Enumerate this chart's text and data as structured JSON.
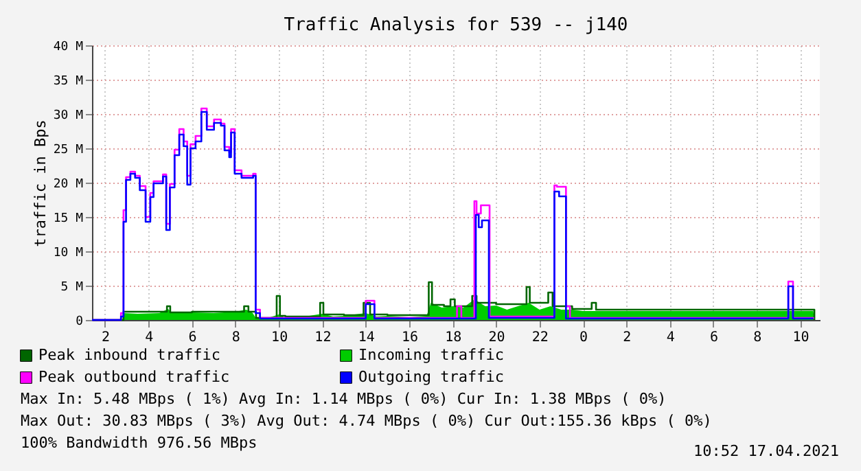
{
  "chart_data": {
    "type": "step",
    "title": "Traffic Analysis for 539 -- j140",
    "ylabel": "traffic in Bps",
    "xlim": [
      "2021-04-16T01:24",
      "2021-04-17T10:54"
    ],
    "ylim": [
      0,
      40
    ],
    "xticks": [
      {
        "value": "2021-04-16T02:00",
        "label": "2"
      },
      {
        "value": "2021-04-16T04:00",
        "label": "4"
      },
      {
        "value": "2021-04-16T06:00",
        "label": "6"
      },
      {
        "value": "2021-04-16T08:00",
        "label": "8"
      },
      {
        "value": "2021-04-16T10:00",
        "label": "10"
      },
      {
        "value": "2021-04-16T12:00",
        "label": "12"
      },
      {
        "value": "2021-04-16T14:00",
        "label": "14"
      },
      {
        "value": "2021-04-16T16:00",
        "label": "16"
      },
      {
        "value": "2021-04-16T18:00",
        "label": "18"
      },
      {
        "value": "2021-04-16T20:00",
        "label": "20"
      },
      {
        "value": "2021-04-16T22:00",
        "label": "22"
      },
      {
        "value": "2021-04-17T00:00",
        "label": "0"
      },
      {
        "value": "2021-04-17T02:00",
        "label": "2"
      },
      {
        "value": "2021-04-17T04:00",
        "label": "4"
      },
      {
        "value": "2021-04-17T06:00",
        "label": "6"
      },
      {
        "value": "2021-04-17T08:00",
        "label": "8"
      },
      {
        "value": "2021-04-17T10:00",
        "label": "10"
      }
    ],
    "yticks": [
      0,
      {
        "value": 5,
        "label": "5 M"
      },
      {
        "value": 10,
        "label": "10 M"
      },
      {
        "value": 15,
        "label": "15 M"
      },
      {
        "value": 20,
        "label": "20 M"
      },
      {
        "value": 25,
        "label": "25 M"
      },
      {
        "value": 30,
        "label": "30 M"
      },
      {
        "value": 35,
        "label": "35 M"
      },
      {
        "value": 40,
        "label": "40 M"
      }
    ],
    "grid": true,
    "legend": "bottom",
    "series": [
      {
        "name": "Incoming traffic",
        "type": "area",
        "color": "#00cc00",
        "x": [
          "2021-04-16T01:24",
          "2021-04-16T02:48",
          "2021-04-16T02:51",
          "2021-04-16T03:30",
          "2021-04-16T04:30",
          "2021-04-16T04:54",
          "2021-04-16T05:06",
          "2021-04-16T06:00",
          "2021-04-16T07:00",
          "2021-04-16T08:00",
          "2021-04-16T08:30",
          "2021-04-16T08:48",
          "2021-04-16T08:57",
          "2021-04-16T09:30",
          "2021-04-16T10:00",
          "2021-04-16T10:18",
          "2021-04-16T11:00",
          "2021-04-16T12:00",
          "2021-04-16T12:30",
          "2021-04-16T13:00",
          "2021-04-16T14:00",
          "2021-04-16T14:30",
          "2021-04-16T15:00",
          "2021-04-16T16:00",
          "2021-04-16T16:48",
          "2021-04-16T17:00",
          "2021-04-16T17:30",
          "2021-04-16T18:00",
          "2021-04-16T18:30",
          "2021-04-16T19:00",
          "2021-04-16T19:30",
          "2021-04-16T20:00",
          "2021-04-16T20:30",
          "2021-04-16T21:00",
          "2021-04-16T21:30",
          "2021-04-16T22:00",
          "2021-04-16T22:30",
          "2021-04-16T23:00",
          "2021-04-16T23:30",
          "2021-04-17T00:00",
          "2021-04-17T01:00",
          "2021-04-17T04:00",
          "2021-04-17T07:00",
          "2021-04-17T09:00",
          "2021-04-17T10:00",
          "2021-04-17T10:36",
          "2021-04-17T10:39"
        ],
        "values": [
          0,
          0,
          1.0,
          0.9,
          1.0,
          1.6,
          1.0,
          1.1,
          1.0,
          1.2,
          1.5,
          1.0,
          0.2,
          0.3,
          0.8,
          0.3,
          0.4,
          0.9,
          0.5,
          0.6,
          1.0,
          0.5,
          0.6,
          0.4,
          0.6,
          2.5,
          1.8,
          2.0,
          1.8,
          3.0,
          2.0,
          2.1,
          1.5,
          2.0,
          2.5,
          1.5,
          2.0,
          1.5,
          1.5,
          1.3,
          1.3,
          1.3,
          1.3,
          1.3,
          1.3,
          1.3,
          0
        ]
      },
      {
        "name": "Peak inbound traffic",
        "color": "#006600",
        "x": [
          "2021-04-16T01:24",
          "2021-04-16T02:48",
          "2021-04-16T02:51",
          "2021-04-16T04:51",
          "2021-04-16T05:00",
          "2021-04-16T06:00",
          "2021-04-16T08:24",
          "2021-04-16T08:36",
          "2021-04-16T08:57",
          "2021-04-16T09:54",
          "2021-04-16T10:03",
          "2021-04-16T10:18",
          "2021-04-16T11:54",
          "2021-04-16T12:03",
          "2021-04-16T13:00",
          "2021-04-16T13:54",
          "2021-04-16T14:12",
          "2021-04-16T15:00",
          "2021-04-16T16:54",
          "2021-04-16T17:03",
          "2021-04-16T17:36",
          "2021-04-16T17:54",
          "2021-04-16T18:06",
          "2021-04-16T18:54",
          "2021-04-16T19:06",
          "2021-04-16T20:00",
          "2021-04-16T21:24",
          "2021-04-16T21:33",
          "2021-04-16T22:24",
          "2021-04-16T22:36",
          "2021-04-16T23:30",
          "2021-04-17T00:24",
          "2021-04-17T00:36",
          "2021-04-17T04:00",
          "2021-04-17T10:36",
          "2021-04-17T10:39"
        ],
        "values": [
          0,
          0,
          1.2,
          2.0,
          1.1,
          1.2,
          2.0,
          1.2,
          0.3,
          3.5,
          0.6,
          0.5,
          2.5,
          0.8,
          0.7,
          2.5,
          0.8,
          0.7,
          5.5,
          2.2,
          2.0,
          3.0,
          2.0,
          3.5,
          2.5,
          2.3,
          4.8,
          2.5,
          4.0,
          2.0,
          1.6,
          2.5,
          1.5,
          1.5,
          1.5,
          0
        ]
      },
      {
        "name": "Peak outbound traffic",
        "color": "#ff00ff",
        "x": [
          "2021-04-16T01:24",
          "2021-04-16T02:44",
          "2021-04-16T02:51",
          "2021-04-16T02:58",
          "2021-04-16T03:10",
          "2021-04-16T03:23",
          "2021-04-16T03:36",
          "2021-04-16T03:52",
          "2021-04-16T04:05",
          "2021-04-16T04:14",
          "2021-04-16T04:40",
          "2021-04-16T04:49",
          "2021-04-16T04:59",
          "2021-04-16T05:12",
          "2021-04-16T05:25",
          "2021-04-16T05:37",
          "2021-04-16T05:47",
          "2021-04-16T05:56",
          "2021-04-16T06:10",
          "2021-04-16T06:26",
          "2021-04-16T06:41",
          "2021-04-16T07:01",
          "2021-04-16T07:20",
          "2021-04-16T07:30",
          "2021-04-16T07:43",
          "2021-04-16T07:48",
          "2021-04-16T07:58",
          "2021-04-16T08:17",
          "2021-04-16T08:49",
          "2021-04-16T08:56",
          "2021-04-16T09:08",
          "2021-04-16T14:00",
          "2021-04-16T14:24",
          "2021-04-16T18:12",
          "2021-04-16T18:24",
          "2021-04-16T19:00",
          "2021-04-16T19:06",
          "2021-04-16T19:18",
          "2021-04-16T19:42",
          "2021-04-16T22:41",
          "2021-04-16T22:48",
          "2021-04-16T23:13",
          "2021-04-16T23:24",
          "2021-04-17T09:27",
          "2021-04-17T09:40",
          "2021-04-17T10:36"
        ],
        "values": [
          0,
          1.0,
          16.0,
          20.8,
          21.6,
          21.0,
          19.5,
          15.0,
          18.5,
          20.2,
          21.2,
          14.0,
          19.8,
          24.8,
          27.8,
          26.0,
          21.0,
          25.6,
          26.8,
          30.8,
          28.2,
          29.2,
          28.6,
          25.2,
          24.4,
          27.8,
          21.8,
          21.0,
          21.3,
          1.5,
          0.3,
          2.8,
          0.3,
          2.0,
          0.3,
          17.3,
          15.5,
          16.7,
          0.5,
          19.6,
          19.4,
          2.0,
          0.3,
          5.6,
          0.3,
          0.2
        ]
      },
      {
        "name": "Outgoing traffic",
        "color": "#0000ff",
        "x": [
          "2021-04-16T01:24",
          "2021-04-16T02:44",
          "2021-04-16T02:51",
          "2021-04-16T02:58",
          "2021-04-16T03:10",
          "2021-04-16T03:23",
          "2021-04-16T03:36",
          "2021-04-16T03:52",
          "2021-04-16T04:05",
          "2021-04-16T04:14",
          "2021-04-16T04:40",
          "2021-04-16T04:49",
          "2021-04-16T04:59",
          "2021-04-16T05:12",
          "2021-04-16T05:25",
          "2021-04-16T05:37",
          "2021-04-16T05:47",
          "2021-04-16T05:56",
          "2021-04-16T06:10",
          "2021-04-16T06:26",
          "2021-04-16T06:41",
          "2021-04-16T07:01",
          "2021-04-16T07:20",
          "2021-04-16T07:30",
          "2021-04-16T07:43",
          "2021-04-16T07:48",
          "2021-04-16T07:58",
          "2021-04-16T08:17",
          "2021-04-16T08:49",
          "2021-04-16T08:56",
          "2021-04-16T09:08",
          "2021-04-16T14:00",
          "2021-04-16T14:24",
          "2021-04-16T19:04",
          "2021-04-16T19:12",
          "2021-04-16T19:21",
          "2021-04-16T19:40",
          "2021-04-16T22:41",
          "2021-04-16T22:54",
          "2021-04-16T23:13",
          "2021-04-17T09:27",
          "2021-04-17T09:40",
          "2021-04-17T10:36"
        ],
        "values": [
          0,
          0.5,
          14.3,
          20.4,
          21.3,
          20.7,
          18.9,
          14.3,
          17.9,
          19.9,
          20.9,
          13.1,
          19.3,
          24.0,
          27.0,
          25.3,
          19.7,
          25.0,
          26.0,
          30.3,
          27.7,
          28.7,
          28.3,
          24.7,
          23.7,
          27.3,
          21.3,
          20.7,
          21.0,
          1.0,
          0.2,
          2.3,
          0.2,
          15.3,
          13.5,
          14.5,
          0.3,
          18.7,
          18.0,
          0.2,
          4.9,
          0.2,
          0.2
        ]
      }
    ],
    "annotations": [
      "Max In:   5.48 MBps ( 1%)  Avg In:   1.14 MBps ( 0%)  Cur In:   1.38 MBps ( 0%)",
      "Max Out: 30.83 MBps ( 3%)  Avg Out:  4.74 MBps ( 0%)  Cur Out:155.36 kBps ( 0%)",
      "100% Bandwidth 976.56 MBps",
      "10:52 17.04.2021"
    ]
  }
}
